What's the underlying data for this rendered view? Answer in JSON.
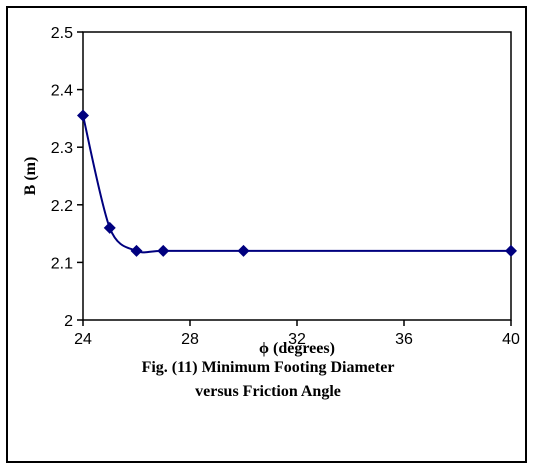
{
  "chart_data": {
    "type": "line",
    "xlabel": "ϕ (degrees)",
    "ylabel": "B (m)",
    "xlim": [
      24,
      40
    ],
    "ylim": [
      2,
      2.5
    ],
    "xticks": [
      "24",
      "28",
      "32",
      "36",
      "40"
    ],
    "yticks": [
      "2",
      "2.1",
      "2.2",
      "2.3",
      "2.4",
      "2.5"
    ],
    "x": [
      24,
      25,
      26,
      27,
      30,
      40
    ],
    "series": [
      {
        "values": [
          2.355,
          2.16,
          2.12,
          2.12,
          2.12,
          2.12
        ]
      }
    ],
    "grid": false,
    "legend": "none",
    "line_color": "#00007f",
    "marker": "diamond"
  },
  "caption": {
    "line1": "Fig. (11) Minimum Footing Diameter",
    "line2": "versus Friction Angle"
  }
}
